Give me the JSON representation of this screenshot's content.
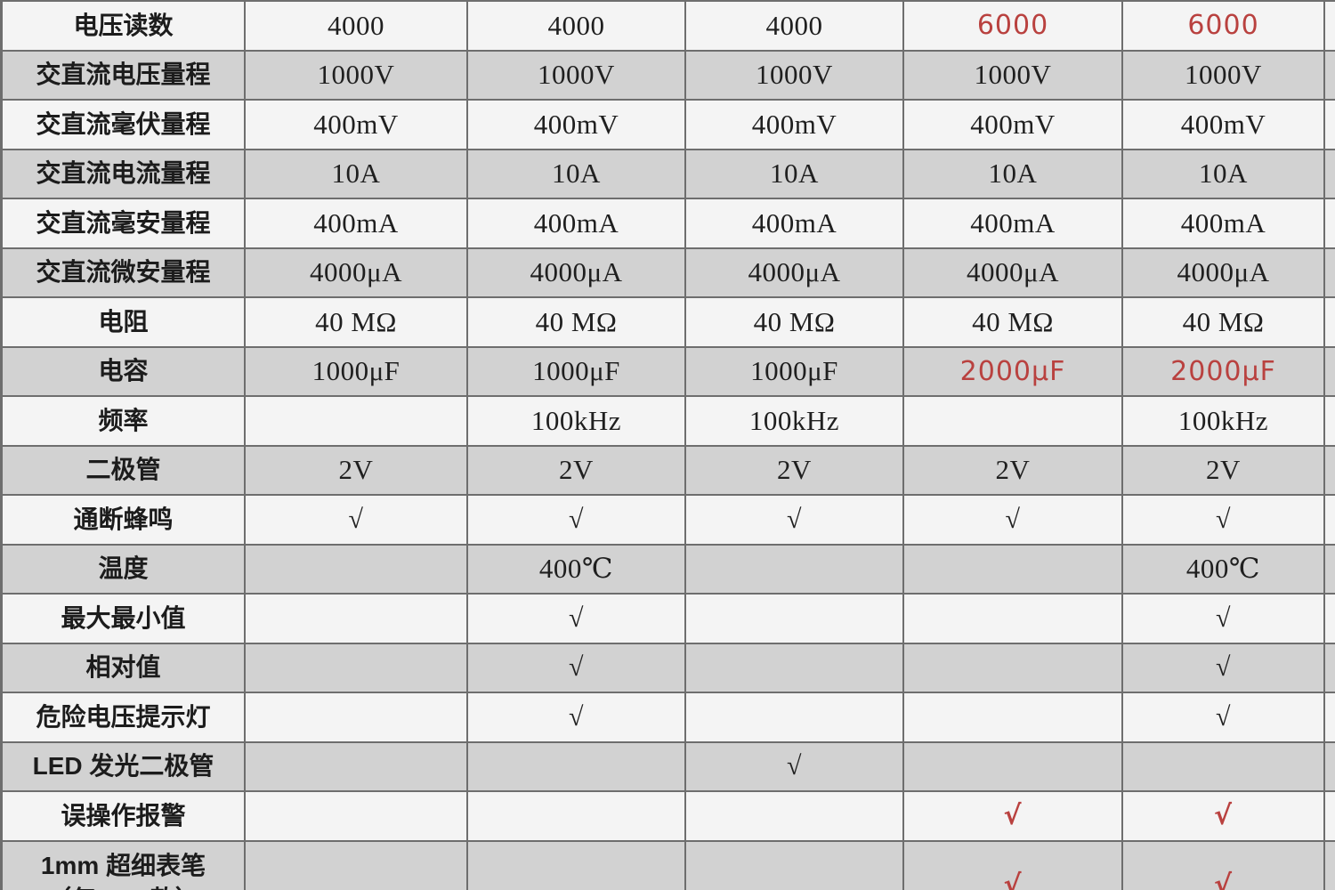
{
  "colors": {
    "row_light": "#f4f4f4",
    "row_dark": "#d2d2d2",
    "border": "#6e6e6e",
    "text": "#1f1f1f",
    "red_accent": "#b9413f"
  },
  "chart_data": {
    "type": "table",
    "columns_count": 5,
    "legend_position": "none",
    "grid": true,
    "check_glyph": "√",
    "rows": [
      {
        "label": "电压读数",
        "values": [
          "4000",
          "4000",
          "4000",
          "6000",
          "6000"
        ],
        "red": [
          false,
          false,
          false,
          true,
          true
        ]
      },
      {
        "label": "交直流电压量程",
        "values": [
          "1000V",
          "1000V",
          "1000V",
          "1000V",
          "1000V"
        ],
        "red": [
          false,
          false,
          false,
          false,
          false
        ]
      },
      {
        "label": "交直流毫伏量程",
        "values": [
          "400mV",
          "400mV",
          "400mV",
          "400mV",
          "400mV"
        ],
        "red": [
          false,
          false,
          false,
          false,
          false
        ]
      },
      {
        "label": "交直流电流量程",
        "values": [
          "10A",
          "10A",
          "10A",
          "10A",
          "10A"
        ],
        "red": [
          false,
          false,
          false,
          false,
          false
        ]
      },
      {
        "label": "交直流毫安量程",
        "values": [
          "400mA",
          "400mA",
          "400mA",
          "400mA",
          "400mA"
        ],
        "red": [
          false,
          false,
          false,
          false,
          false
        ]
      },
      {
        "label": "交直流微安量程",
        "values": [
          "4000μA",
          "4000μA",
          "4000μA",
          "4000μA",
          "4000μA"
        ],
        "red": [
          false,
          false,
          false,
          false,
          false
        ]
      },
      {
        "label": "电阻",
        "values": [
          "40 MΩ",
          "40 MΩ",
          "40 MΩ",
          "40 MΩ",
          "40 MΩ"
        ],
        "red": [
          false,
          false,
          false,
          false,
          false
        ]
      },
      {
        "label": "电容",
        "values": [
          "1000μF",
          "1000μF",
          "1000μF",
          "2000μF",
          "2000μF"
        ],
        "red": [
          false,
          false,
          false,
          true,
          true
        ]
      },
      {
        "label": "频率",
        "values": [
          "",
          "100kHz",
          "100kHz",
          "",
          "100kHz"
        ],
        "red": [
          false,
          false,
          false,
          false,
          false
        ]
      },
      {
        "label": "二极管",
        "values": [
          "2V",
          "2V",
          "2V",
          "2V",
          "2V"
        ],
        "red": [
          false,
          false,
          false,
          false,
          false
        ]
      },
      {
        "label": "通断蜂鸣",
        "values": [
          "√",
          "√",
          "√",
          "√",
          "√"
        ],
        "red": [
          false,
          false,
          false,
          false,
          false
        ]
      },
      {
        "label": "温度",
        "values": [
          "",
          "400℃",
          "",
          "",
          "400℃"
        ],
        "red": [
          false,
          false,
          false,
          false,
          false
        ]
      },
      {
        "label": "最大最小值",
        "values": [
          "",
          "√",
          "",
          "",
          "√"
        ],
        "red": [
          false,
          false,
          false,
          false,
          false
        ]
      },
      {
        "label": "相对值",
        "values": [
          "",
          "√",
          "",
          "",
          "√"
        ],
        "red": [
          false,
          false,
          false,
          false,
          false
        ]
      },
      {
        "label": "危险电压提示灯",
        "values": [
          "",
          "√",
          "",
          "",
          "√"
        ],
        "red": [
          false,
          false,
          false,
          false,
          false
        ]
      },
      {
        "label": "LED 发光二极管",
        "values": [
          "",
          "",
          "√",
          "",
          ""
        ],
        "red": [
          false,
          false,
          false,
          false,
          false
        ]
      },
      {
        "label": "误操作报警",
        "values": [
          "",
          "",
          "",
          "√",
          "√"
        ],
        "red": [
          false,
          false,
          false,
          true,
          true
        ]
      },
      {
        "label": "1mm 超细表笔",
        "label_line2": "（仅 XW 款）",
        "values": [
          "",
          "",
          "",
          "√",
          "√"
        ],
        "red": [
          false,
          false,
          false,
          true,
          true
        ]
      }
    ]
  }
}
